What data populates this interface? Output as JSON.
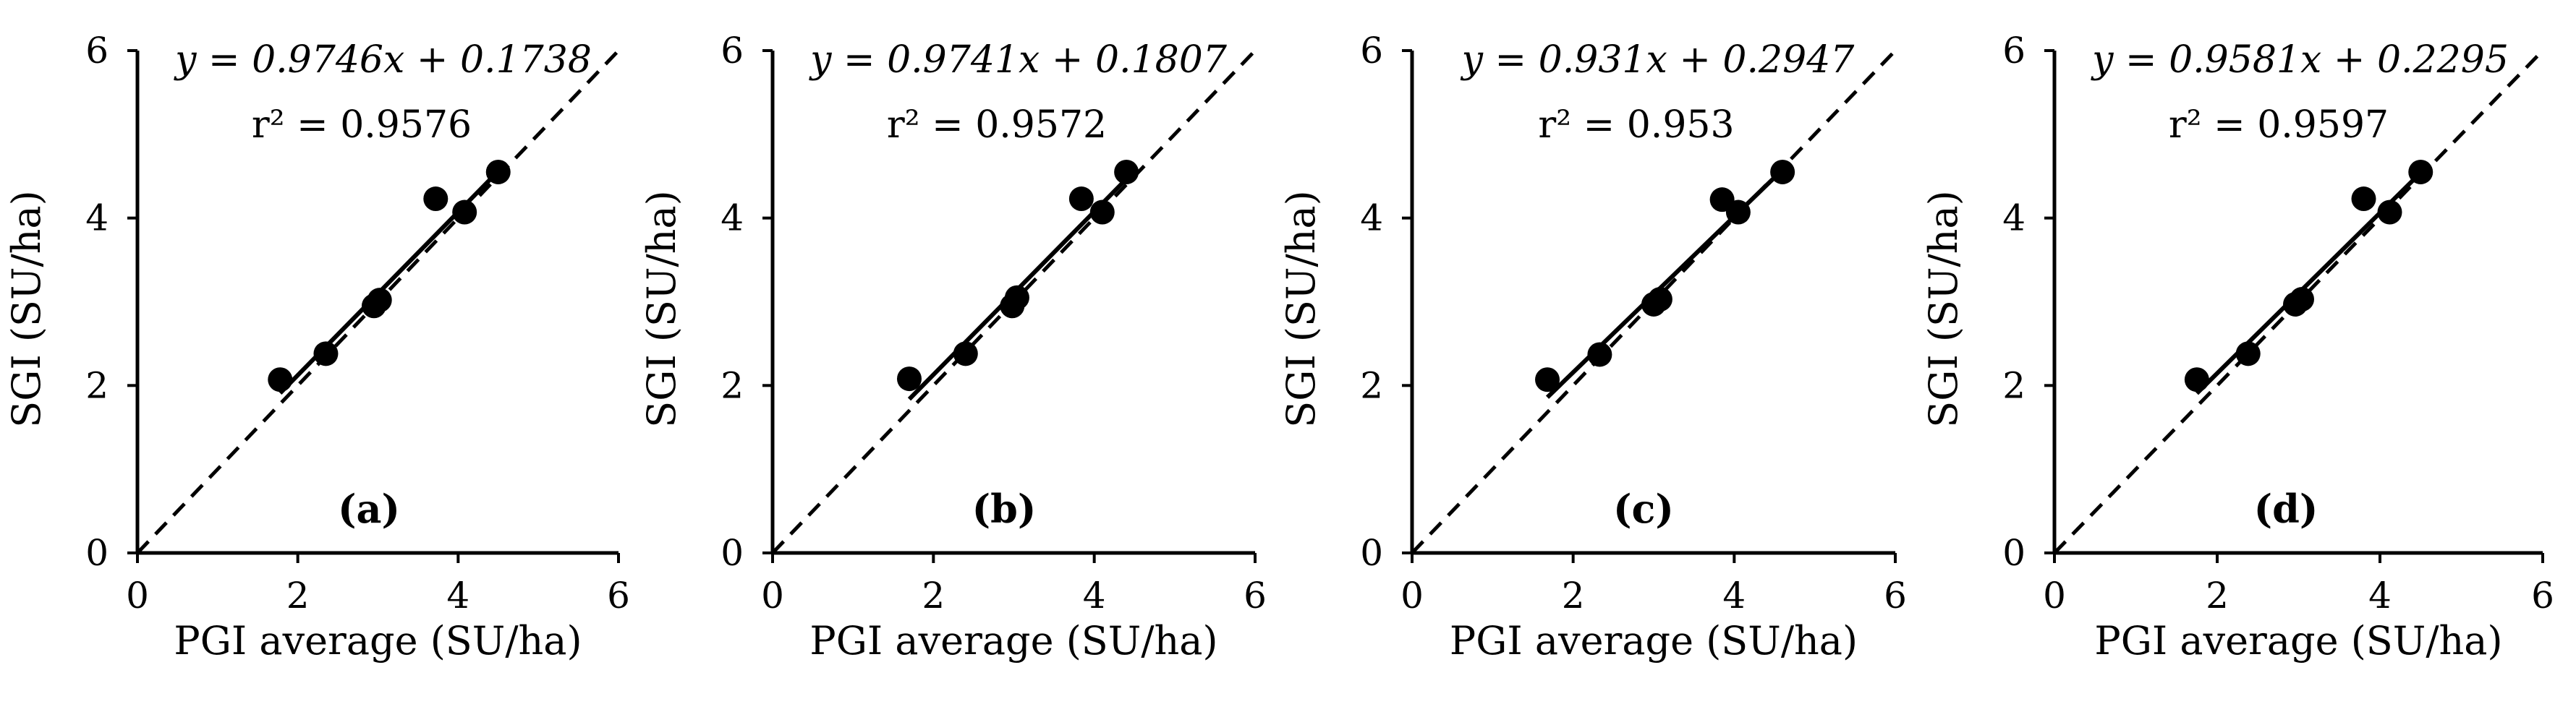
{
  "figure": {
    "panels": [
      {
        "id": "a",
        "letter": "(a)",
        "equation": "y = 0.9746x + 0.1738",
        "r2": "r² = 0.9576",
        "xlabel": "PGI average (SU/ha)",
        "ylabel": "SGI (SU/ha)",
        "xticks": [
          "0",
          "2",
          "4",
          "6"
        ],
        "yticks": [
          "0",
          "2",
          "4",
          "6"
        ]
      },
      {
        "id": "b",
        "letter": "(b)",
        "equation": "y = 0.9741x + 0.1807",
        "r2": "r² = 0.9572",
        "xlabel": "PGI average (SU/ha)",
        "ylabel": "SGI (SU/ha)",
        "xticks": [
          "0",
          "2",
          "4",
          "6"
        ],
        "yticks": [
          "0",
          "2",
          "4",
          "6"
        ]
      },
      {
        "id": "c",
        "letter": "(c)",
        "equation": "y = 0.931x + 0.2947",
        "r2": "r² = 0.953",
        "xlabel": "PGI average (SU/ha)",
        "ylabel": "SGI (SU/ha)",
        "xticks": [
          "0",
          "2",
          "4",
          "6"
        ],
        "yticks": [
          "0",
          "2",
          "4",
          "6"
        ]
      },
      {
        "id": "d",
        "letter": "(d)",
        "equation": "y = 0.9581x + 0.2295",
        "r2": "r² = 0.9597",
        "xlabel": "PGI average (SU/ha)",
        "ylabel": "SGI (SU/ha)",
        "xticks": [
          "0",
          "2",
          "4",
          "6"
        ],
        "yticks": [
          "0",
          "2",
          "4",
          "6"
        ]
      }
    ]
  },
  "chart_data": [
    {
      "type": "scatter",
      "panel": "(a)",
      "xlabel": "PGI average (SU/ha)",
      "ylabel": "SGI (SU/ha)",
      "xlim": [
        0,
        6
      ],
      "ylim": [
        0,
        6
      ],
      "series": [
        {
          "name": "points",
          "x": [
            1.78,
            2.35,
            2.95,
            3.02,
            3.72,
            4.08,
            4.5
          ],
          "y": [
            2.07,
            2.38,
            2.95,
            3.02,
            4.23,
            4.07,
            4.55
          ]
        }
      ],
      "fit": {
        "slope": 0.9746,
        "intercept": 0.1738,
        "x_range": [
          1.78,
          4.5
        ]
      },
      "reference_line": {
        "label": "1:1",
        "slope": 1,
        "intercept": 0
      },
      "grid": false
    },
    {
      "type": "scatter",
      "panel": "(b)",
      "xlabel": "PGI average (SU/ha)",
      "ylabel": "SGI (SU/ha)",
      "xlim": [
        0,
        6
      ],
      "ylim": [
        0,
        6
      ],
      "series": [
        {
          "name": "points",
          "x": [
            1.7,
            2.4,
            2.98,
            3.04,
            3.84,
            4.1,
            4.4
          ],
          "y": [
            2.08,
            2.38,
            2.95,
            3.05,
            4.23,
            4.07,
            4.55
          ]
        }
      ],
      "fit": {
        "slope": 0.9741,
        "intercept": 0.1807,
        "x_range": [
          1.7,
          4.4
        ]
      },
      "reference_line": {
        "label": "1:1",
        "slope": 1,
        "intercept": 0
      },
      "grid": false
    },
    {
      "type": "scatter",
      "panel": "(c)",
      "xlabel": "PGI average (SU/ha)",
      "ylabel": "SGI (SU/ha)",
      "xlim": [
        0,
        6
      ],
      "ylim": [
        0,
        6
      ],
      "series": [
        {
          "name": "points",
          "x": [
            1.68,
            2.33,
            3.0,
            3.08,
            3.85,
            4.05,
            4.6
          ],
          "y": [
            2.07,
            2.37,
            2.97,
            3.03,
            4.22,
            4.07,
            4.55
          ]
        }
      ],
      "fit": {
        "slope": 0.931,
        "intercept": 0.2947,
        "x_range": [
          1.68,
          4.6
        ]
      },
      "reference_line": {
        "label": "1:1",
        "slope": 1,
        "intercept": 0
      },
      "grid": false
    },
    {
      "type": "scatter",
      "panel": "(d)",
      "xlabel": "PGI average (SU/ha)",
      "ylabel": "SGI (SU/ha)",
      "xlim": [
        0,
        6
      ],
      "ylim": [
        0,
        6
      ],
      "series": [
        {
          "name": "points",
          "x": [
            1.75,
            2.38,
            2.96,
            3.04,
            3.8,
            4.12,
            4.5
          ],
          "y": [
            2.07,
            2.38,
            2.97,
            3.03,
            4.23,
            4.07,
            4.55
          ]
        }
      ],
      "fit": {
        "slope": 0.9581,
        "intercept": 0.2295,
        "x_range": [
          1.75,
          4.5
        ]
      },
      "reference_line": {
        "label": "1:1",
        "slope": 1,
        "intercept": 0
      },
      "grid": false
    }
  ]
}
